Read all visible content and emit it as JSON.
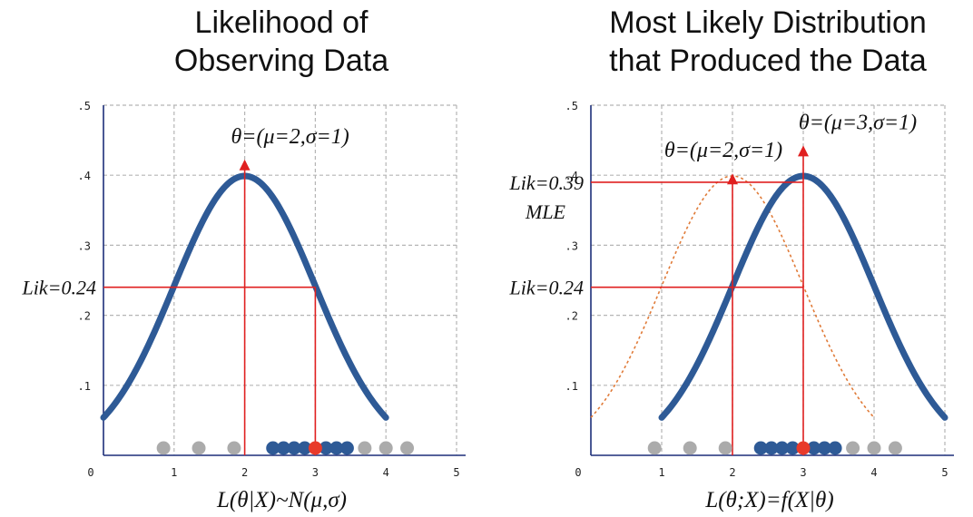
{
  "chart_data": [
    {
      "type": "line",
      "title_lines": [
        "Likelihood of",
        "Observing Data"
      ],
      "xlabel": "L(θ|X)~N(μ,σ)",
      "x_ticks": [
        "0",
        "1",
        "2",
        "3",
        "4",
        "5"
      ],
      "y_ticks": [
        ".1",
        ".2",
        ".3",
        ".4",
        ".5"
      ],
      "xlim": [
        0,
        5
      ],
      "ylim": [
        0,
        0.5
      ],
      "grid": true,
      "series": [
        {
          "style": "solid",
          "color": "#2e5a96",
          "mu": 2,
          "sigma": 1,
          "x_range": [
            0,
            4
          ]
        }
      ],
      "points": {
        "gray_x": [
          0.85,
          1.35,
          1.85,
          3.7,
          4.0,
          4.3
        ],
        "blue_x": [
          2.4,
          2.55,
          2.7,
          2.85,
          3.15,
          3.3,
          3.45
        ],
        "red_x": [
          3.0
        ]
      },
      "arrows": [
        {
          "x": 2,
          "to_y": 0.42,
          "label": "θ=(μ=2,σ=1)"
        }
      ],
      "lines": [
        {
          "x": 3,
          "y": 0.24,
          "label": "Lik=0.24"
        }
      ]
    },
    {
      "type": "line",
      "title_lines": [
        "Most Likely Distribution",
        "that  Produced the Data"
      ],
      "xlabel": "L(θ;X)=f(X|θ)",
      "x_ticks": [
        "0",
        "1",
        "2",
        "3",
        "4",
        "5"
      ],
      "y_ticks": [
        ".1",
        ".2",
        ".3",
        ".4",
        ".5"
      ],
      "xlim": [
        0,
        5
      ],
      "ylim": [
        0,
        0.5
      ],
      "grid": true,
      "series": [
        {
          "style": "dotted",
          "color": "#e07b39",
          "mu": 2,
          "sigma": 1,
          "x_range": [
            0,
            4
          ]
        },
        {
          "style": "solid",
          "color": "#2e5a96",
          "mu": 3,
          "sigma": 1,
          "x_range": [
            1,
            5
          ]
        }
      ],
      "points": {
        "gray_x": [
          0.9,
          1.4,
          1.9,
          3.7,
          4.0,
          4.3
        ],
        "blue_x": [
          2.4,
          2.55,
          2.7,
          2.85,
          3.15,
          3.3,
          3.45
        ],
        "red_x": [
          3.0
        ]
      },
      "arrows": [
        {
          "x": 2,
          "to_y": 0.4,
          "label": "θ=(μ=2,σ=1)"
        },
        {
          "x": 3,
          "to_y": 0.44,
          "label": "θ=(μ=3,σ=1)"
        }
      ],
      "lines": [
        {
          "x": 3,
          "y": 0.39,
          "label": "Lik=0.39",
          "sublabel": "MLE"
        },
        {
          "x": 3,
          "y": 0.24,
          "label": "Lik=0.24"
        }
      ]
    }
  ]
}
